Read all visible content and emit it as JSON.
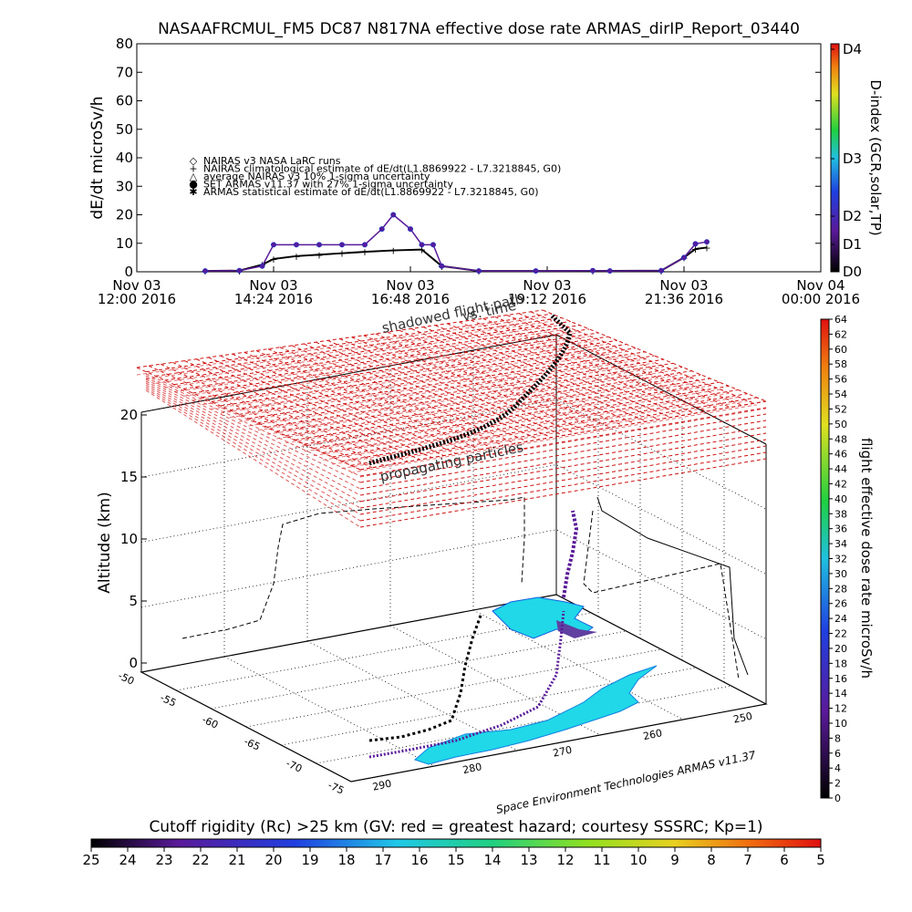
{
  "chart_data": [
    {
      "type": "line",
      "title": "NASAAFRCMUL_FM5 DC87 N817NA effective dose rate ARMAS_dirIP_Report_03440",
      "ylabel": "dE/dt microSv/h",
      "ylim": [
        0,
        80
      ],
      "yticks": [
        "0",
        "10",
        "20",
        "30",
        "40",
        "50",
        "60",
        "70",
        "80"
      ],
      "x_ticks": [
        {
          "line1": "Nov 03",
          "line2": "12:00 2016"
        },
        {
          "line1": "Nov 03",
          "line2": "14:24 2016"
        },
        {
          "line1": "Nov 03",
          "line2": "16:48 2016"
        },
        {
          "line1": "Nov 03",
          "line2": "19:12 2016"
        },
        {
          "line1": "Nov 03",
          "line2": "21:36 2016"
        },
        {
          "line1": "Nov 04",
          "line2": "00:00 2016"
        }
      ],
      "xlim_hours": [
        12,
        24
      ],
      "legend": [
        {
          "symbol": "◇",
          "label": "NAIRAS v3 NASA LaRC runs"
        },
        {
          "symbol": "+",
          "label": "NAIRAS climatological estimate of dE/dt(L1.8869922 - L7.3218845, G0)"
        },
        {
          "symbol": "△",
          "label": "average NAIRAS v3 10% 1-sigma uncertainty"
        },
        {
          "symbol": "●",
          "label": "SET ARMAS v11.37 with 27% 1-sigma uncertainty",
          "color": "#2030c0"
        },
        {
          "symbol": "✱",
          "label": "ARMAS statistical estimate of dE/dt(L1.8869922 - L7.3218845, G0)"
        }
      ],
      "series": [
        {
          "name": "SET ARMAS v11.37 with 27% 1-sigma uncertainty",
          "x_hours": [
            13.2,
            13.8,
            14.2,
            14.4,
            14.8,
            15.2,
            15.6,
            16.0,
            16.3,
            16.5,
            16.8,
            17.0,
            17.2,
            17.35,
            18.0,
            19.0,
            20.0,
            20.3,
            21.2,
            21.6,
            21.8,
            22.0
          ],
          "y": [
            0.3,
            0.4,
            2,
            9.5,
            9.5,
            9.5,
            9.5,
            9.5,
            15,
            20,
            15,
            9.5,
            9.5,
            2,
            0.3,
            0.3,
            0.4,
            0.3,
            0.4,
            5,
            9.8,
            10.5
          ]
        },
        {
          "name": "NAIRAS climatological estimate of dE/dt(L1.8869922 - L7.3218845, G0)",
          "x_hours": [
            13.2,
            13.8,
            14.2,
            14.4,
            14.8,
            15.2,
            15.6,
            16.0,
            16.5,
            17.0,
            17.35,
            18.0,
            20.0,
            21.2,
            21.6,
            21.8,
            22.0
          ],
          "y": [
            0.3,
            0.4,
            2.5,
            4.5,
            5.5,
            6,
            6.5,
            7,
            7.5,
            7.8,
            2,
            0.3,
            0.3,
            0.4,
            5,
            8,
            8.5
          ]
        }
      ],
      "colorbar": {
        "label": "D-index (GCR,solar,TP)",
        "ticks": [
          "D0",
          "D1",
          "D2",
          "D3",
          "D4"
        ]
      }
    },
    {
      "type": "scatter",
      "zlabel": "Altitude (km)",
      "zticks": [
        "0",
        "5",
        "10",
        "15",
        "20"
      ],
      "lat_ticks": [
        "-50",
        "-55",
        "-60",
        "-65",
        "-70",
        "-75"
      ],
      "lon_ticks": [
        "250",
        "260",
        "270",
        "280",
        "290"
      ],
      "annotations": [
        "shadowed flight path",
        "vs. time",
        "propagating particles"
      ],
      "credit": "Space Environment Technologies ARMAS v11.37",
      "colorbar": {
        "label": "flight effective dose rate microSv/h",
        "ticks": [
          "0",
          "2",
          "4",
          "6",
          "8",
          "10",
          "12",
          "14",
          "16",
          "18",
          "20",
          "22",
          "24",
          "26",
          "28",
          "30",
          "32",
          "34",
          "36",
          "38",
          "40",
          "42",
          "44",
          "46",
          "48",
          "50",
          "52",
          "54",
          "56",
          "58",
          "60",
          "62",
          "64"
        ]
      }
    }
  ],
  "bottom_colorbar": {
    "label": "Cutoff rigidity (Rc) >25 km (GV: red = greatest hazard; courtesy SSSRC; Kp=1)",
    "ticks": [
      "25",
      "24",
      "23",
      "22",
      "21",
      "20",
      "19",
      "18",
      "17",
      "16",
      "15",
      "14",
      "13",
      "12",
      "11",
      "10",
      "9",
      "8",
      "7",
      "6",
      "5"
    ]
  },
  "colors": {
    "armas": "#2030c0",
    "armas_face": "#5a1a9a",
    "grid_red": "#d01010",
    "land": "#20d8e8"
  }
}
